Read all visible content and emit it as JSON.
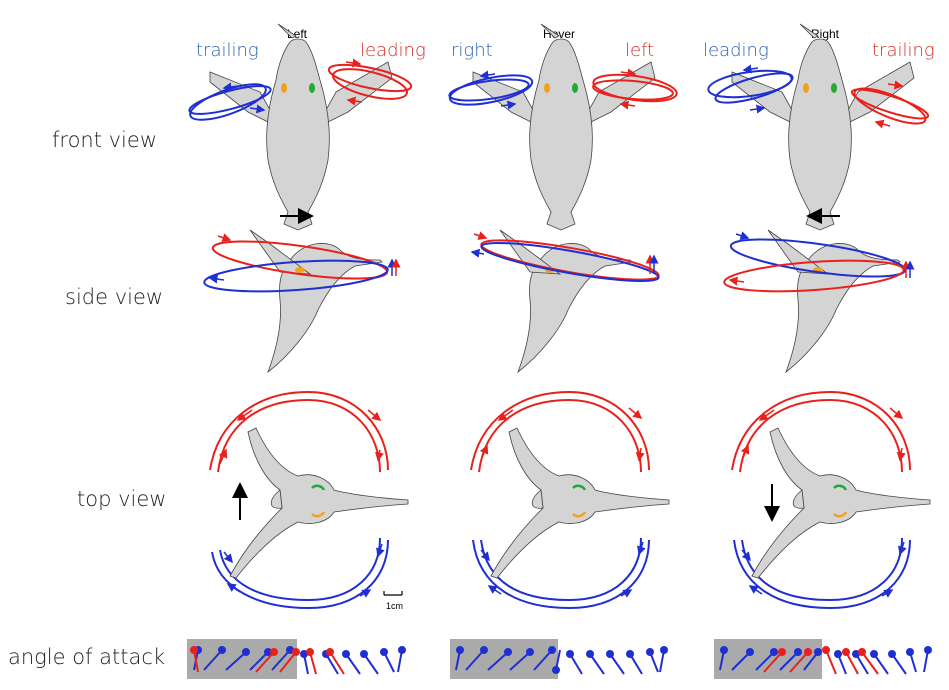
{
  "rows": {
    "front": "front view",
    "side": "side view",
    "top": "top view",
    "aoa": "angle of attack"
  },
  "columns": [
    {
      "title": "Left",
      "left_wing": "trailing",
      "right_wing": "leading",
      "flight_direction": "right"
    },
    {
      "title": "Hover",
      "left_wing": "right",
      "right_wing": "left",
      "flight_direction": "none"
    },
    {
      "title": "Right",
      "left_wing": "leading",
      "right_wing": "trailing",
      "flight_direction": "left"
    }
  ],
  "scale_bar": "1cm",
  "colors": {
    "red_wing": "#e8211d",
    "blue_wing": "#1f2fd1",
    "blue_label": "#2b63b6",
    "red_label": "#d6302a",
    "body_fill": "#d4d4d4",
    "orange_marker": "#f2a020",
    "green_marker": "#22aa33",
    "aoa_box": "#aaaaaa"
  }
}
